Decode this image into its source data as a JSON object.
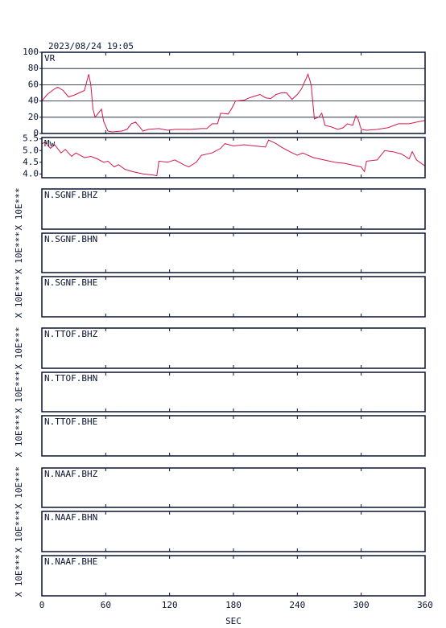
{
  "timestamp": "2023/08/24 19:05",
  "xlabel": "SEC",
  "xlim": [
    0,
    360
  ],
  "xticks": [
    0,
    60,
    120,
    180,
    240,
    300,
    360
  ],
  "chart_data": [
    {
      "type": "line",
      "title": "VR",
      "color": "#d4184a",
      "grid": true,
      "ylim": [
        0,
        100
      ],
      "yticks": [
        0,
        20,
        40,
        60,
        80,
        100
      ],
      "x": [
        0,
        5,
        12,
        15,
        20,
        25,
        30,
        35,
        40,
        44,
        46,
        48,
        50,
        53,
        56,
        58,
        62,
        66,
        75,
        80,
        84,
        88,
        92,
        95,
        100,
        110,
        118,
        125,
        140,
        150,
        155,
        160,
        165,
        168,
        175,
        178,
        182,
        190,
        195,
        200,
        205,
        210,
        215,
        220,
        225,
        230,
        235,
        240,
        244,
        250,
        253,
        256,
        260,
        263,
        266,
        272,
        278,
        283,
        287,
        292,
        295,
        297,
        300,
        305,
        315,
        325,
        335,
        345,
        352,
        360
      ],
      "values": [
        40,
        48,
        55,
        57,
        53,
        45,
        47,
        50,
        53,
        73,
        60,
        30,
        20,
        25,
        30,
        15,
        3,
        2,
        3,
        5,
        12,
        14,
        8,
        3,
        5,
        6,
        4,
        5,
        5,
        6,
        6,
        12,
        12,
        25,
        24,
        30,
        40,
        41,
        44,
        46,
        48,
        44,
        43,
        48,
        50,
        50,
        42,
        48,
        55,
        73,
        60,
        18,
        20,
        25,
        10,
        8,
        5,
        7,
        12,
        10,
        22,
        18,
        5,
        4,
        5,
        7,
        12,
        12,
        14,
        16
      ]
    },
    {
      "type": "line",
      "title": "Mw",
      "color": "#d4184a",
      "grid": false,
      "ylim": [
        3.84,
        5.56
      ],
      "yticks": [
        {
          "value": 4,
          "label": "4.0"
        },
        4.5,
        {
          "value": 5,
          "label": "5.0"
        },
        5.5
      ],
      "x": [
        0,
        3,
        8,
        12,
        18,
        22,
        28,
        32,
        40,
        46,
        52,
        58,
        62,
        68,
        72,
        78,
        85,
        95,
        105,
        108,
        110,
        118,
        125,
        133,
        138,
        145,
        150,
        160,
        168,
        172,
        180,
        190,
        200,
        210,
        213,
        220,
        225,
        233,
        240,
        245,
        255,
        265,
        275,
        285,
        295,
        300,
        303,
        305,
        315,
        322,
        330,
        338,
        345,
        348,
        352,
        358,
        360
      ],
      "values": [
        5.3,
        5.35,
        5.1,
        5.25,
        4.9,
        5.05,
        4.75,
        4.9,
        4.7,
        4.75,
        4.65,
        4.5,
        4.55,
        4.3,
        4.4,
        4.2,
        4.1,
        4.0,
        3.95,
        3.92,
        4.55,
        4.5,
        4.6,
        4.4,
        4.3,
        4.5,
        4.8,
        4.9,
        5.1,
        5.3,
        5.2,
        5.25,
        5.2,
        5.15,
        5.45,
        5.3,
        5.15,
        4.95,
        4.8,
        4.9,
        4.7,
        4.6,
        4.5,
        4.45,
        4.35,
        4.3,
        4.1,
        4.55,
        4.6,
        5.0,
        4.95,
        4.85,
        4.65,
        4.95,
        4.6,
        4.4,
        4.35
      ]
    },
    {
      "type": "waveform",
      "title": "N.SGNF.BHZ",
      "scale_label": "X 10E***"
    },
    {
      "type": "waveform",
      "title": "N.SGNF.BHN",
      "scale_label": "X 10E***"
    },
    {
      "type": "waveform",
      "title": "N.SGNF.BHE",
      "scale_label": "X 10E***"
    },
    {
      "type": "waveform",
      "title": "N.TTOF.BHZ",
      "scale_label": "X 10E***"
    },
    {
      "type": "waveform",
      "title": "N.TTOF.BHN",
      "scale_label": "X 10E***"
    },
    {
      "type": "waveform",
      "title": "N.TTOF.BHE",
      "scale_label": "X 10E***"
    },
    {
      "type": "waveform",
      "title": "N.NAAF.BHZ",
      "scale_label": "X 10E***"
    },
    {
      "type": "waveform",
      "title": "N.NAAF.BHN",
      "scale_label": "X 10E***"
    },
    {
      "type": "waveform",
      "title": "N.NAAF.BHE",
      "scale_label": "X 10E***"
    }
  ]
}
